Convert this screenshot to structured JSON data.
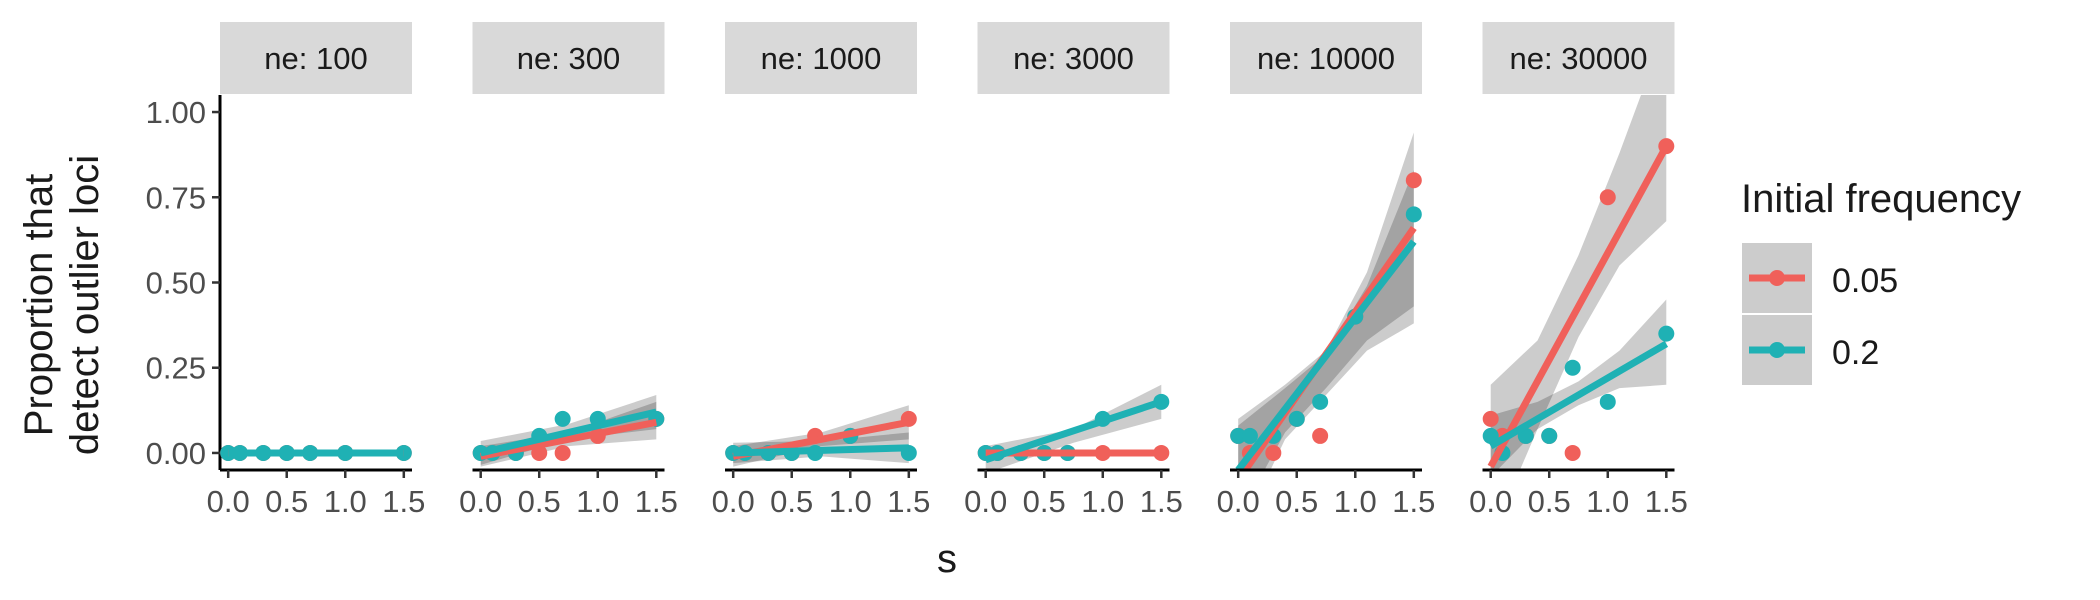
{
  "chart_data": {
    "type": "scatter",
    "facet_var": "ne",
    "xlabel": "s",
    "ylabel": [
      "Proportion that",
      "detect outlier loci"
    ],
    "xlim": [
      -0.07,
      1.57
    ],
    "ylim": [
      -0.05,
      1.05
    ],
    "x_ticks": [
      0.0,
      0.5,
      1.0,
      1.5
    ],
    "x_tick_labels": [
      "0.0",
      "0.5",
      "1.0",
      "1.5"
    ],
    "y_ticks": [
      0.0,
      0.25,
      0.5,
      0.75,
      1.0
    ],
    "y_tick_labels": [
      "0.00",
      "0.25",
      "0.50",
      "0.75",
      "1.00"
    ],
    "grid": false,
    "legend": {
      "title": "Initial frequency",
      "position": "right",
      "entries": [
        {
          "label": "0.05",
          "color": "#F0605A"
        },
        {
          "label": "0.2",
          "color": "#1FB1B4"
        }
      ]
    },
    "ribbon_color": "#000000",
    "panels": [
      {
        "label": "ne: 100",
        "series": [
          {
            "name": "0.05",
            "points": [
              [
                0.0,
                0.0
              ],
              [
                0.1,
                0.0
              ],
              [
                0.3,
                0.0
              ],
              [
                0.5,
                0.0
              ],
              [
                0.7,
                0.0
              ],
              [
                1.0,
                0.0
              ],
              [
                1.5,
                0.0
              ]
            ],
            "fit": [
              [
                0.0,
                0.0
              ],
              [
                1.5,
                0.0
              ]
            ],
            "band": [
              [
                0.0,
                0.0,
                0.0
              ],
              [
                1.5,
                0.0,
                0.0
              ]
            ]
          },
          {
            "name": "0.2",
            "points": [
              [
                0.0,
                0.0
              ],
              [
                0.1,
                0.0
              ],
              [
                0.3,
                0.0
              ],
              [
                0.5,
                0.0
              ],
              [
                0.7,
                0.0
              ],
              [
                1.0,
                0.0
              ],
              [
                1.5,
                0.0
              ]
            ],
            "fit": [
              [
                0.0,
                0.0
              ],
              [
                1.5,
                0.0
              ]
            ],
            "band": [
              [
                0.0,
                0.0,
                0.0
              ],
              [
                1.5,
                0.0,
                0.0
              ]
            ]
          }
        ]
      },
      {
        "label": "ne: 300",
        "series": [
          {
            "name": "0.05",
            "points": [
              [
                0.0,
                0.0
              ],
              [
                0.1,
                0.0
              ],
              [
                0.3,
                0.0
              ],
              [
                0.5,
                0.0
              ],
              [
                0.7,
                0.0
              ],
              [
                1.0,
                0.05
              ],
              [
                1.5,
                0.1
              ]
            ],
            "fit": [
              [
                0.0,
                -0.01
              ],
              [
                1.5,
                0.09
              ]
            ],
            "band": [
              [
                0.0,
                -0.04,
                0.02
              ],
              [
                0.75,
                0.02,
                0.06
              ],
              [
                1.5,
                0.04,
                0.15
              ]
            ]
          },
          {
            "name": "0.2",
            "points": [
              [
                0.0,
                0.0
              ],
              [
                0.1,
                0.0
              ],
              [
                0.3,
                0.0
              ],
              [
                0.5,
                0.05
              ],
              [
                0.7,
                0.1
              ],
              [
                1.0,
                0.1
              ],
              [
                1.5,
                0.1
              ]
            ],
            "fit": [
              [
                0.0,
                0.0
              ],
              [
                1.5,
                0.12
              ]
            ],
            "band": [
              [
                0.0,
                -0.035,
                0.035
              ],
              [
                0.75,
                0.04,
                0.085
              ],
              [
                1.5,
                0.07,
                0.17
              ]
            ]
          }
        ]
      },
      {
        "label": "ne: 1000",
        "series": [
          {
            "name": "0.05",
            "points": [
              [
                0.0,
                0.0
              ],
              [
                0.1,
                0.0
              ],
              [
                0.3,
                0.0
              ],
              [
                0.5,
                0.0
              ],
              [
                0.7,
                0.05
              ],
              [
                1.0,
                0.05
              ],
              [
                1.5,
                0.1
              ]
            ],
            "fit": [
              [
                0.0,
                -0.01
              ],
              [
                1.5,
                0.09
              ]
            ],
            "band": [
              [
                0.0,
                -0.04,
                0.02
              ],
              [
                0.75,
                0.02,
                0.06
              ],
              [
                1.5,
                0.04,
                0.14
              ]
            ]
          },
          {
            "name": "0.2",
            "points": [
              [
                0.0,
                0.0
              ],
              [
                0.1,
                0.0
              ],
              [
                0.3,
                0.0
              ],
              [
                0.5,
                0.0
              ],
              [
                0.7,
                0.0
              ],
              [
                1.0,
                0.05
              ],
              [
                1.5,
                0.0
              ]
            ],
            "fit": [
              [
                0.0,
                0.0
              ],
              [
                1.5,
                0.015
              ]
            ],
            "band": [
              [
                0.0,
                -0.03,
                0.03
              ],
              [
                0.75,
                -0.01,
                0.035
              ],
              [
                1.5,
                -0.03,
                0.06
              ]
            ]
          }
        ]
      },
      {
        "label": "ne: 3000",
        "series": [
          {
            "name": "0.05",
            "points": [
              [
                0.0,
                0.0
              ],
              [
                0.1,
                0.0
              ],
              [
                0.3,
                0.0
              ],
              [
                0.5,
                0.0
              ],
              [
                0.7,
                0.0
              ],
              [
                1.0,
                0.0
              ],
              [
                1.5,
                0.0
              ]
            ],
            "fit": [
              [
                0.0,
                0.0
              ],
              [
                1.5,
                0.0
              ]
            ],
            "band": [
              [
                0.0,
                0.0,
                0.0
              ],
              [
                1.5,
                0.0,
                0.0
              ]
            ]
          },
          {
            "name": "0.2",
            "points": [
              [
                0.0,
                0.0
              ],
              [
                0.1,
                0.0
              ],
              [
                0.3,
                0.0
              ],
              [
                0.5,
                0.0
              ],
              [
                0.7,
                0.0
              ],
              [
                1.0,
                0.1
              ],
              [
                1.5,
                0.15
              ]
            ],
            "fit": [
              [
                0.0,
                -0.02
              ],
              [
                1.5,
                0.15
              ]
            ],
            "band": [
              [
                0.0,
                -0.06,
                0.02
              ],
              [
                0.75,
                0.03,
                0.07
              ],
              [
                1.5,
                0.1,
                0.2
              ]
            ]
          }
        ]
      },
      {
        "label": "ne: 10000",
        "series": [
          {
            "name": "0.05",
            "points": [
              [
                0.0,
                0.05
              ],
              [
                0.1,
                0.0
              ],
              [
                0.3,
                0.0
              ],
              [
                0.5,
                0.1
              ],
              [
                0.7,
                0.05
              ],
              [
                1.0,
                0.4
              ],
              [
                1.5,
                0.8
              ]
            ],
            "fit": [
              [
                0.0,
                -0.08
              ],
              [
                1.5,
                0.66
              ]
            ],
            "band": [
              [
                0.0,
                -0.25,
                0.1
              ],
              [
                0.4,
                0.04,
                0.2
              ],
              [
                0.75,
                0.17,
                0.3
              ],
              [
                1.1,
                0.3,
                0.53
              ],
              [
                1.5,
                0.38,
                0.94
              ]
            ]
          },
          {
            "name": "0.2",
            "points": [
              [
                0.0,
                0.05
              ],
              [
                0.1,
                0.05
              ],
              [
                0.3,
                0.05
              ],
              [
                0.5,
                0.1
              ],
              [
                0.7,
                0.15
              ],
              [
                1.0,
                0.4
              ],
              [
                1.5,
                0.7
              ]
            ],
            "fit": [
              [
                0.0,
                -0.05
              ],
              [
                1.5,
                0.62
              ]
            ],
            "band": [
              [
                0.0,
                -0.19,
                0.08
              ],
              [
                0.4,
                0.06,
                0.19
              ],
              [
                0.75,
                0.19,
                0.29
              ],
              [
                1.1,
                0.33,
                0.49
              ],
              [
                1.5,
                0.43,
                0.83
              ]
            ]
          }
        ]
      },
      {
        "label": "ne: 30000",
        "series": [
          {
            "name": "0.05",
            "points": [
              [
                0.0,
                0.1
              ],
              [
                0.1,
                0.05
              ],
              [
                0.3,
                0.05
              ],
              [
                0.5,
                0.05
              ],
              [
                0.7,
                0.0
              ],
              [
                1.0,
                0.75
              ],
              [
                1.5,
                0.9
              ]
            ],
            "fit": [
              [
                0.0,
                -0.04
              ],
              [
                1.5,
                0.9
              ]
            ],
            "band": [
              [
                0.0,
                -0.25,
                0.2
              ],
              [
                0.4,
                0.07,
                0.33
              ],
              [
                0.75,
                0.34,
                0.58
              ],
              [
                1.1,
                0.55,
                0.88
              ],
              [
                1.5,
                0.68,
                1.25
              ]
            ]
          },
          {
            "name": "0.2",
            "points": [
              [
                0.0,
                0.05
              ],
              [
                0.1,
                0.0
              ],
              [
                0.3,
                0.05
              ],
              [
                0.5,
                0.05
              ],
              [
                0.7,
                0.25
              ],
              [
                1.0,
                0.15
              ],
              [
                1.5,
                0.35
              ]
            ],
            "fit": [
              [
                0.0,
                0.02
              ],
              [
                1.5,
                0.32
              ]
            ],
            "band": [
              [
                0.0,
                -0.07,
                0.11
              ],
              [
                0.4,
                0.07,
                0.15
              ],
              [
                0.75,
                0.14,
                0.21
              ],
              [
                1.1,
                0.19,
                0.3
              ],
              [
                1.5,
                0.2,
                0.45
              ]
            ]
          }
        ]
      }
    ]
  }
}
